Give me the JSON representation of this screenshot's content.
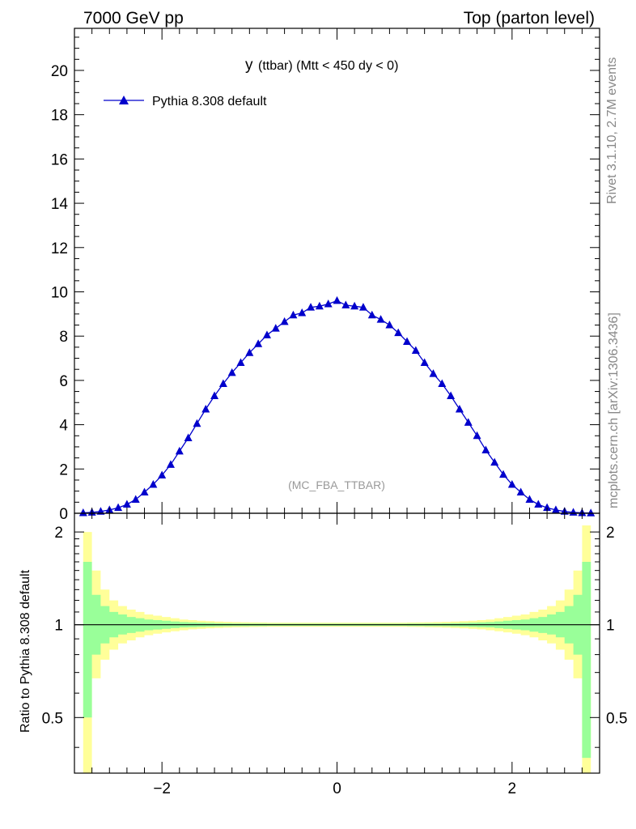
{
  "header": {
    "energy": "7000 GeV pp",
    "process": "Top (parton level)"
  },
  "side_labels": {
    "rivet": "Rivet 3.1.10,  2.7M events",
    "mcplots": "mcplots.cern.ch [arXiv:1306.3436]"
  },
  "watermark": "(MC_FBA_TTBAR)",
  "plot_title": {
    "main": "y",
    "detail": "(ttbar) (Mtt < 450 dy < 0)"
  },
  "ratio_ylabel": "Ratio to Pythia 8.308 default",
  "colors": {
    "series": "#0000cc",
    "band_inner": "#99ff99",
    "band_outer": "#ffff99",
    "axis": "#000000"
  },
  "chart_data": [
    {
      "type": "line",
      "panel": "main",
      "xlim": [
        -3.0,
        3.0
      ],
      "ylim": [
        0,
        21.9
      ],
      "yticks": [
        0,
        2,
        4,
        6,
        8,
        10,
        12,
        14,
        16,
        18,
        20
      ],
      "yticklabels": [
        "0",
        "2",
        "4",
        "6",
        "8",
        "10",
        "12",
        "14",
        "16",
        "18",
        "20"
      ],
      "legend_position": "top-left",
      "series": [
        {
          "name": "Pythia 8.308 default",
          "marker": "triangle",
          "x": [
            -2.9,
            -2.8,
            -2.7,
            -2.6,
            -2.5,
            -2.4,
            -2.3,
            -2.2,
            -2.1,
            -2.0,
            -1.9,
            -1.8,
            -1.7,
            -1.6,
            -1.5,
            -1.4,
            -1.3,
            -1.2,
            -1.1,
            -1.0,
            -0.9,
            -0.8,
            -0.7,
            -0.6,
            -0.5,
            -0.4,
            -0.3,
            -0.2,
            -0.1,
            0.0,
            0.1,
            0.2,
            0.3,
            0.4,
            0.5,
            0.6,
            0.7,
            0.8,
            0.9,
            1.0,
            1.1,
            1.2,
            1.3,
            1.4,
            1.5,
            1.6,
            1.7,
            1.8,
            1.9,
            2.0,
            2.1,
            2.2,
            2.3,
            2.4,
            2.5,
            2.6,
            2.7,
            2.8,
            2.9
          ],
          "values": [
            0.02,
            0.04,
            0.08,
            0.15,
            0.25,
            0.4,
            0.62,
            0.95,
            1.3,
            1.72,
            2.2,
            2.8,
            3.4,
            4.05,
            4.7,
            5.3,
            5.85,
            6.35,
            6.8,
            7.25,
            7.65,
            8.05,
            8.35,
            8.65,
            8.95,
            9.05,
            9.3,
            9.35,
            9.45,
            9.6,
            9.4,
            9.35,
            9.3,
            8.95,
            8.75,
            8.5,
            8.15,
            7.75,
            7.35,
            6.8,
            6.3,
            5.85,
            5.3,
            4.7,
            4.1,
            3.5,
            2.85,
            2.3,
            1.75,
            1.3,
            0.95,
            0.62,
            0.4,
            0.25,
            0.15,
            0.08,
            0.04,
            0.02,
            0.01
          ]
        }
      ]
    },
    {
      "type": "area",
      "panel": "ratio",
      "xlim": [
        -3.0,
        3.0
      ],
      "ylim": [
        0.33,
        2.3
      ],
      "yscale": "log",
      "xticks": [
        -2,
        0,
        2
      ],
      "xticklabels": [
        "−2",
        "0",
        "2"
      ],
      "yticks": [
        0.5,
        1,
        2
      ],
      "yticklabels": [
        "0.5",
        "1",
        "2"
      ],
      "reference_line": 1,
      "bin_edges": [
        -2.9,
        -2.8,
        -2.7,
        -2.6,
        -2.5,
        -2.4,
        -2.3,
        -2.2,
        -2.1,
        -2.0,
        -1.9,
        -1.8,
        -1.7,
        -1.6,
        -1.5,
        -1.4,
        -1.3,
        -1.2,
        -1.1,
        -1.0,
        -0.9,
        -0.8,
        -0.7,
        -0.6,
        -0.5,
        -0.4,
        -0.3,
        -0.2,
        -0.1,
        0.0,
        0.1,
        0.2,
        0.3,
        0.4,
        0.5,
        0.6,
        0.7,
        0.8,
        0.9,
        1.0,
        1.1,
        1.2,
        1.3,
        1.4,
        1.5,
        1.6,
        1.7,
        1.8,
        1.9,
        2.0,
        2.1,
        2.2,
        2.3,
        2.4,
        2.5,
        2.6,
        2.7,
        2.8,
        2.9
      ],
      "band_inner_upper": [
        1.6,
        1.25,
        1.15,
        1.1,
        1.08,
        1.06,
        1.05,
        1.04,
        1.035,
        1.03,
        1.025,
        1.02,
        1.018,
        1.016,
        1.014,
        1.012,
        1.011,
        1.01,
        1.01,
        1.009,
        1.009,
        1.008,
        1.008,
        1.008,
        1.008,
        1.008,
        1.008,
        1.008,
        1.008,
        1.008,
        1.008,
        1.008,
        1.008,
        1.008,
        1.008,
        1.008,
        1.008,
        1.009,
        1.009,
        1.01,
        1.01,
        1.011,
        1.012,
        1.014,
        1.016,
        1.018,
        1.02,
        1.025,
        1.03,
        1.035,
        1.04,
        1.05,
        1.06,
        1.08,
        1.1,
        1.15,
        1.25,
        1.6
      ],
      "band_inner_lower": [
        0.5,
        0.8,
        0.87,
        0.91,
        0.93,
        0.94,
        0.95,
        0.96,
        0.965,
        0.97,
        0.975,
        0.98,
        0.982,
        0.984,
        0.986,
        0.988,
        0.989,
        0.99,
        0.99,
        0.991,
        0.991,
        0.992,
        0.992,
        0.992,
        0.992,
        0.992,
        0.992,
        0.992,
        0.992,
        0.992,
        0.992,
        0.992,
        0.992,
        0.992,
        0.992,
        0.992,
        0.992,
        0.991,
        0.991,
        0.99,
        0.99,
        0.989,
        0.988,
        0.986,
        0.984,
        0.982,
        0.98,
        0.975,
        0.97,
        0.965,
        0.96,
        0.95,
        0.94,
        0.93,
        0.91,
        0.87,
        0.8,
        0.37
      ],
      "band_outer_upper": [
        2.0,
        1.5,
        1.3,
        1.2,
        1.15,
        1.12,
        1.1,
        1.08,
        1.07,
        1.06,
        1.05,
        1.04,
        1.035,
        1.03,
        1.027,
        1.024,
        1.022,
        1.02,
        1.019,
        1.018,
        1.017,
        1.016,
        1.016,
        1.016,
        1.016,
        1.016,
        1.016,
        1.016,
        1.016,
        1.016,
        1.016,
        1.016,
        1.016,
        1.016,
        1.016,
        1.016,
        1.016,
        1.017,
        1.018,
        1.019,
        1.02,
        1.022,
        1.024,
        1.027,
        1.03,
        1.035,
        1.04,
        1.05,
        1.06,
        1.07,
        1.08,
        1.1,
        1.12,
        1.15,
        1.2,
        1.3,
        1.5,
        2.1
      ],
      "band_outer_lower": [
        0.33,
        0.67,
        0.77,
        0.83,
        0.87,
        0.89,
        0.91,
        0.925,
        0.935,
        0.945,
        0.952,
        0.96,
        0.966,
        0.97,
        0.974,
        0.977,
        0.979,
        0.981,
        0.982,
        0.983,
        0.984,
        0.985,
        0.985,
        0.985,
        0.985,
        0.985,
        0.985,
        0.985,
        0.985,
        0.985,
        0.985,
        0.985,
        0.985,
        0.985,
        0.985,
        0.985,
        0.985,
        0.984,
        0.983,
        0.982,
        0.981,
        0.979,
        0.977,
        0.974,
        0.97,
        0.966,
        0.96,
        0.952,
        0.945,
        0.935,
        0.925,
        0.91,
        0.89,
        0.87,
        0.83,
        0.77,
        0.67,
        0.33
      ]
    }
  ]
}
